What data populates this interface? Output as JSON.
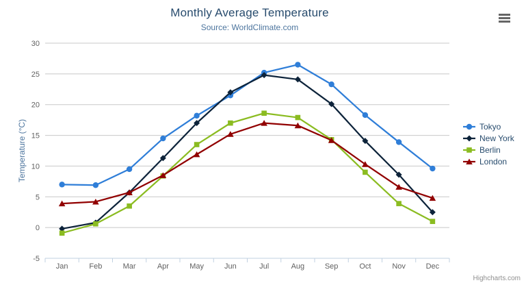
{
  "chart": {
    "title": "Monthly Average Temperature",
    "subtitle": "Source: WorldClimate.com",
    "credits": "Highcharts.com"
  },
  "colors": {
    "title": "#274b6d",
    "subtitle": "#4d759e",
    "axis_title": "#4d759e",
    "tick_label": "#606060",
    "gridline": "#c8c8c8",
    "axis_line": "#c0d0e0",
    "legend_text": "#274b6d",
    "credits": "#8f8f8f",
    "menu_icon": "#666666"
  },
  "chart_data": {
    "type": "line",
    "title": "Monthly Average Temperature",
    "subtitle": "Source: WorldClimate.com",
    "xlabel": "",
    "ylabel": "Temperature (°C)",
    "ylim": [
      -5,
      30
    ],
    "ytick_step": 5,
    "yticks": [
      -5,
      0,
      5,
      10,
      15,
      20,
      25,
      30
    ],
    "grid": true,
    "legend_position": "right",
    "categories": [
      "Jan",
      "Feb",
      "Mar",
      "Apr",
      "May",
      "Jun",
      "Jul",
      "Aug",
      "Sep",
      "Oct",
      "Nov",
      "Dec"
    ],
    "series": [
      {
        "name": "Tokyo",
        "color": "#2f7ed8",
        "marker": "circle",
        "values": [
          7.0,
          6.9,
          9.5,
          14.5,
          18.2,
          21.5,
          25.2,
          26.5,
          23.3,
          18.3,
          13.9,
          9.6
        ]
      },
      {
        "name": "New York",
        "color": "#0d233a",
        "marker": "diamond",
        "values": [
          -0.2,
          0.8,
          5.7,
          11.3,
          17.0,
          22.0,
          24.8,
          24.1,
          20.1,
          14.1,
          8.6,
          2.5
        ]
      },
      {
        "name": "Berlin",
        "color": "#8bbc21",
        "marker": "square",
        "values": [
          -0.9,
          0.6,
          3.5,
          8.4,
          13.5,
          17.0,
          18.6,
          17.9,
          14.3,
          9.0,
          3.9,
          1.0
        ]
      },
      {
        "name": "London",
        "color": "#910000",
        "marker": "triangle",
        "values": [
          3.9,
          4.2,
          5.7,
          8.5,
          11.9,
          15.2,
          17.0,
          16.6,
          14.2,
          10.3,
          6.6,
          4.8
        ]
      }
    ]
  }
}
